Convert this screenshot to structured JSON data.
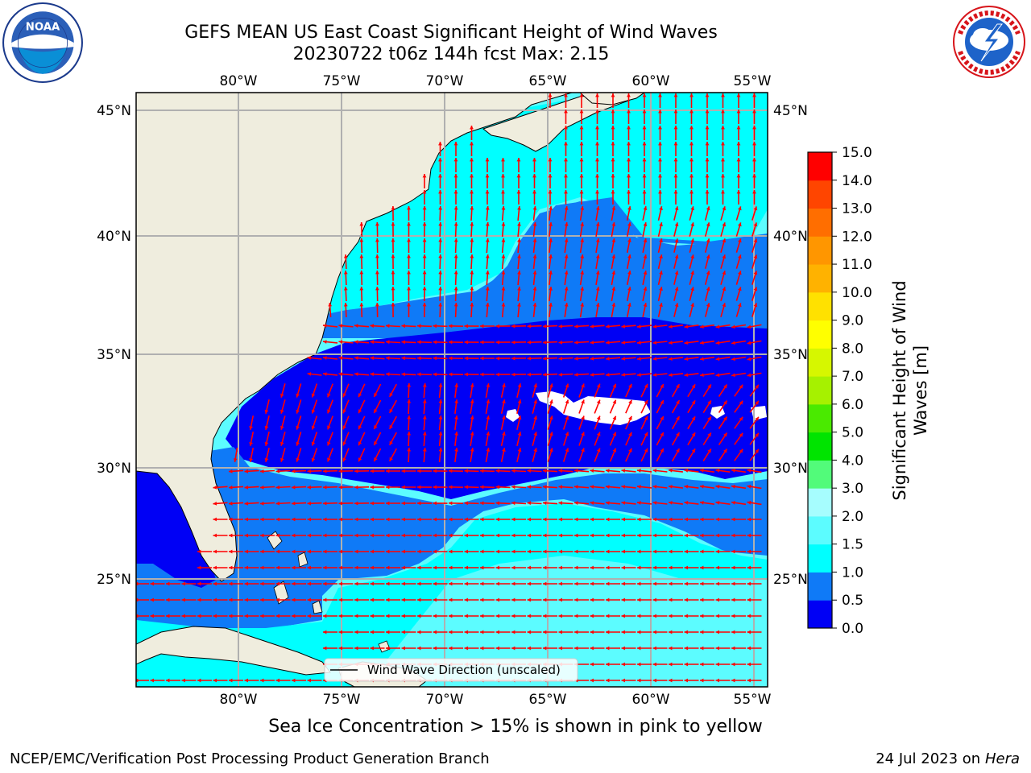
{
  "title": {
    "line1": "GEFS MEAN US East Coast Significant Height of Wind Waves",
    "line2": "20230722 t06z 144h fcst   Max: 2.15"
  },
  "logos": {
    "left": "noaa-logo",
    "right": "nws-logo"
  },
  "map": {
    "lon_labels": [
      "80°W",
      "75°W",
      "70°W",
      "65°W",
      "60°W",
      "55°W"
    ],
    "lat_labels": [
      "45°N",
      "40°N",
      "35°N",
      "30°N",
      "25°N"
    ],
    "legend": "Wind Wave Direction (unscaled)",
    "colors": {
      "land": "#efedde",
      "band_0_0_5": "#0000f5",
      "band_0_5_1_0": "#0f7af7",
      "band_1_0_1_5": "#00ffff",
      "band_1_5_2_0": "#5cfcff",
      "arrows": "#ff0000"
    }
  },
  "colorbar": {
    "ticks": [
      "15.0",
      "14.0",
      "13.0",
      "12.0",
      "11.0",
      "10.0",
      "9.0",
      "8.0",
      "7.0",
      "6.0",
      "5.0",
      "4.0",
      "3.0",
      "2.0",
      "1.5",
      "1.0",
      "0.5",
      "0.0"
    ],
    "label_line1": "Significant Height of Wind",
    "label_line2": "Waves [m]",
    "colors": [
      "#0000f5",
      "#0f7af7",
      "#00ffff",
      "#5cfcff",
      "#a6fdfe",
      "#52fb7a",
      "#00e400",
      "#4aea00",
      "#a6f100",
      "#d6f700",
      "#ffff00",
      "#ffe100",
      "#ffb200",
      "#ff9600",
      "#ff6e00",
      "#ff4500",
      "#ff0000"
    ]
  },
  "bottom_note": "Sea Ice Concentration > 15% is shown in pink to yellow",
  "footer": {
    "left": "NCEP/EMC/Verification Post Processing Product Generation Branch",
    "right_date": "24 Jul 2023 on",
    "right_host": "Hera"
  }
}
